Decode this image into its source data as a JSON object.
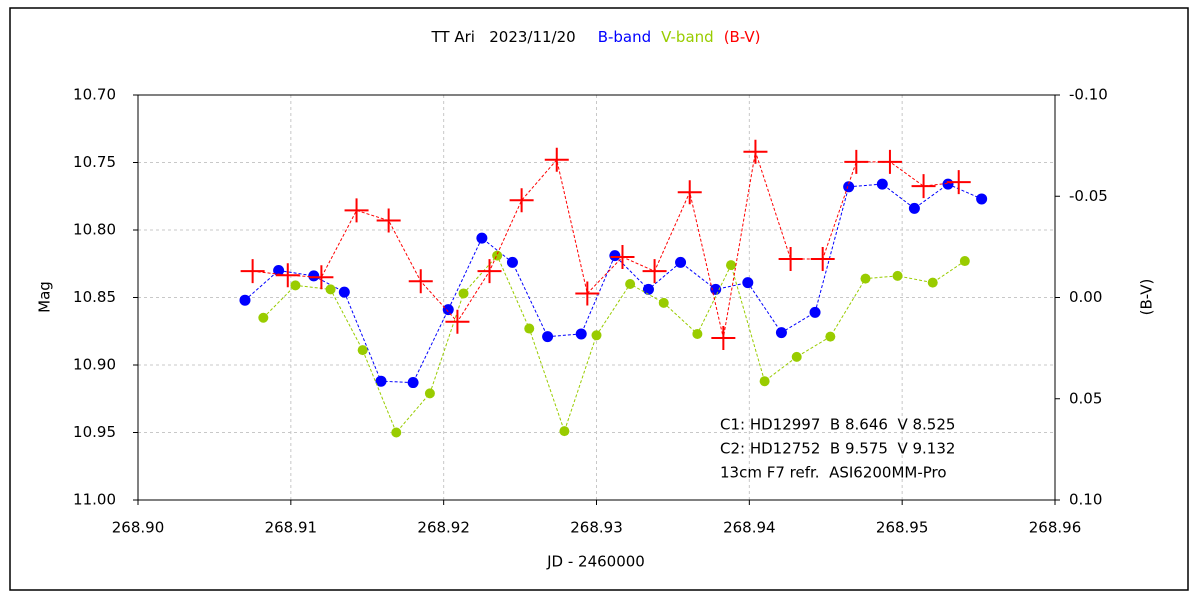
{
  "chart_data": {
    "type": "scatter",
    "title": "TT Ari   2023/11/20",
    "x_label": "JD - 2460000",
    "y_label": "Mag",
    "y2_label": "(B-V)",
    "xlim": [
      268.9,
      268.96
    ],
    "xticks": [
      {
        "value": 268.9,
        "label": "268.90"
      },
      {
        "value": 268.91,
        "label": "268.91"
      },
      {
        "value": 268.92,
        "label": "268.92"
      },
      {
        "value": 268.93,
        "label": "268.93"
      },
      {
        "value": 268.94,
        "label": "268.94"
      },
      {
        "value": 268.95,
        "label": "268.95"
      },
      {
        "value": 268.96,
        "label": "268.96"
      }
    ],
    "ylim": [
      10.7,
      11.0
    ],
    "yticks": [
      {
        "value": 10.7,
        "label": "10.70"
      },
      {
        "value": 10.75,
        "label": "10.75"
      },
      {
        "value": 10.8,
        "label": "10.80"
      },
      {
        "value": 10.85,
        "label": "10.85"
      },
      {
        "value": 10.9,
        "label": "10.90"
      },
      {
        "value": 10.95,
        "label": "10.95"
      },
      {
        "value": 11.0,
        "label": "11.00"
      }
    ],
    "y2lim": [
      -0.1,
      0.1
    ],
    "y2ticks": [
      {
        "value": -0.1,
        "label": "-0.10"
      },
      {
        "value": -0.05,
        "label": "-0.05"
      },
      {
        "value": 0.0,
        "label": "0.00"
      },
      {
        "value": 0.05,
        "label": "0.05"
      },
      {
        "value": 0.1,
        "label": "0.10"
      }
    ],
    "invert_y": true,
    "grid": true,
    "y2_color": "#ff0000",
    "series": [
      {
        "name": "B-band",
        "color": "#0000ff",
        "marker": "circle",
        "x": [
          268.907,
          268.9092,
          268.9115,
          268.9135,
          268.9159,
          268.918,
          268.9203,
          268.9225,
          268.9245,
          268.9268,
          268.929,
          268.9312,
          268.9334,
          268.9355,
          268.9378,
          268.9399,
          268.9421,
          268.9443,
          268.9465,
          268.9487,
          268.9508,
          268.953,
          268.9552
        ],
        "values": [
          10.852,
          10.83,
          10.834,
          10.846,
          10.912,
          10.913,
          10.859,
          10.806,
          10.824,
          10.879,
          10.877,
          10.819,
          10.844,
          10.824,
          10.844,
          10.839,
          10.876,
          10.861,
          10.768,
          10.766,
          10.784,
          10.766,
          10.777
        ]
      },
      {
        "name": "V-band",
        "color": "#99cc00",
        "marker": "circle",
        "x": [
          268.9082,
          268.9103,
          268.9126,
          268.9147,
          268.9169,
          268.9191,
          268.9213,
          268.9235,
          268.9256,
          268.9279,
          268.93,
          268.9322,
          268.9344,
          268.9366,
          268.9388,
          268.941,
          268.9431,
          268.9453,
          268.9476,
          268.9497,
          268.952,
          268.9541
        ],
        "values": [
          10.865,
          10.841,
          10.844,
          10.889,
          10.95,
          10.921,
          10.847,
          10.819,
          10.873,
          10.949,
          10.878,
          10.84,
          10.854,
          10.877,
          10.826,
          10.912,
          10.894,
          10.879,
          10.836,
          10.834,
          10.839,
          10.823
        ]
      },
      {
        "name": "(B-V)",
        "color": "#ff0000",
        "marker": "plus",
        "axis": "y2",
        "x": [
          268.9075,
          268.9098,
          268.912,
          268.9143,
          268.9164,
          268.9185,
          268.9209,
          268.923,
          268.9251,
          268.9274,
          268.9294,
          268.9317,
          268.9338,
          268.9361,
          268.9383,
          268.9404,
          268.9427,
          268.9448,
          268.947,
          268.9492,
          268.9514,
          268.9537
        ],
        "values": [
          -0.013,
          -0.011,
          -0.01,
          -0.043,
          -0.038,
          -0.008,
          0.012,
          -0.013,
          -0.048,
          -0.068,
          -0.002,
          -0.02,
          -0.013,
          -0.052,
          0.02,
          -0.072,
          -0.019,
          -0.019,
          -0.067,
          -0.067,
          -0.055,
          -0.057
        ]
      }
    ],
    "annotations": [
      "C1: HD12997  B 8.646  V 8.525",
      "C2: HD12752  B 9.575  V 9.132",
      "13cm F7 refr.  ASI6200MM-Pro"
    ]
  }
}
